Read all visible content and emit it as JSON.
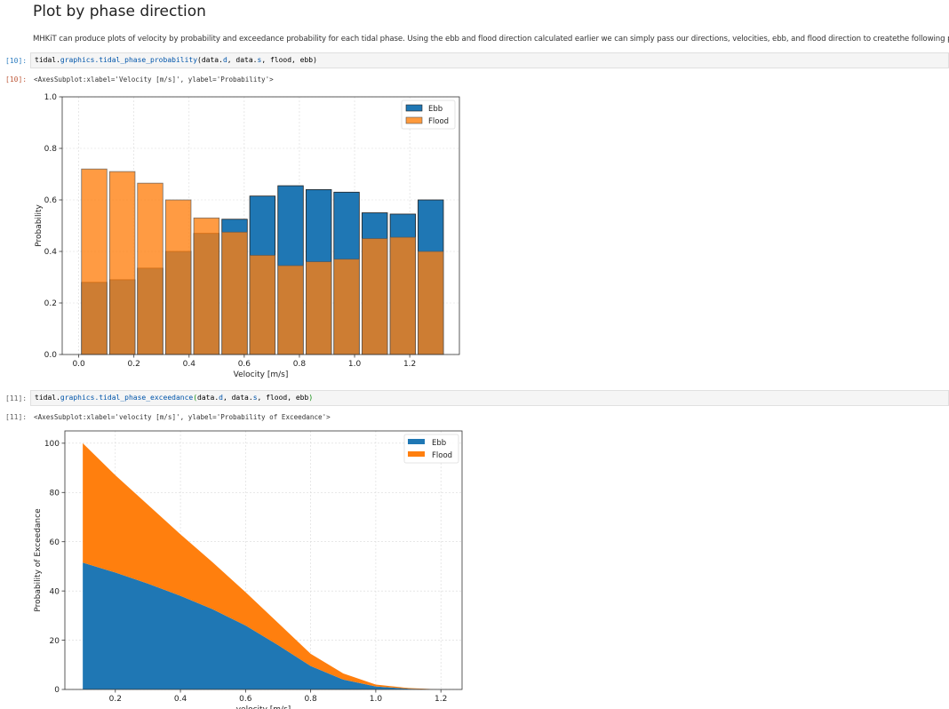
{
  "markdown": {
    "title": "Plot by phase direction",
    "text": "MHKiT can produce plots of velocity by probability and exceedance probability for each tidal phase. Using the ebb and flood direction calculated earlier we can simply pass our directions, velocities, ebb, and flood direction to createthe following plots:"
  },
  "cells": [
    {
      "in_prompt": "[10]:",
      "out_prompt": "[10]:",
      "code": {
        "obj": "tidal.",
        "attr": "graphics.tidal_phase_probability",
        "open": "(",
        "args_a": "data.",
        "a1": "d",
        "sep1": ", data.",
        "a2": "s",
        "rest": ", flood, ebb",
        "close": ")"
      },
      "output": "<AxesSubplot:xlabel='Velocity [m/s]', ylabel='Probability'>"
    },
    {
      "in_prompt": "[11]:",
      "out_prompt": "[11]:",
      "code": {
        "obj": "tidal.",
        "attr": "graphics.tidal_phase_exceedance",
        "open": "(",
        "args_a": "data.",
        "a1": "d",
        "sep1": ", data.",
        "a2": "s",
        "rest": ", flood, ebb",
        "close": ")"
      },
      "output": "<AxesSubplot:xlabel='velocity [m/s]', ylabel='Probability of Exceedance'>"
    }
  ],
  "colors": {
    "ebb": "#1f77b4",
    "flood": "#ff7f0e",
    "flood_overlay": "#ff9a3c",
    "overlap": "#cf7d32"
  },
  "chart_data": [
    {
      "type": "bar",
      "title": "",
      "xlabel": "Velocity [m/s]",
      "ylabel": "Probability",
      "xlim": [
        -0.06,
        1.38
      ],
      "ylim": [
        0,
        1.0
      ],
      "xticks": [
        "0.0",
        "0.2",
        "0.4",
        "0.6",
        "0.8",
        "1.0",
        "1.2"
      ],
      "xtick_values": [
        0.0,
        0.2,
        0.4,
        0.6,
        0.8,
        1.0,
        1.2
      ],
      "yticks": [
        "0.0",
        "0.2",
        "0.4",
        "0.6",
        "0.8",
        "1.0"
      ],
      "ytick_values": [
        0.0,
        0.2,
        0.4,
        0.6,
        0.8,
        1.0
      ],
      "grid": true,
      "legend": "top-right",
      "bin_centers": [
        0.056,
        0.158,
        0.259,
        0.361,
        0.463,
        0.565,
        0.666,
        0.768,
        0.87,
        0.971,
        1.073,
        1.175,
        1.276
      ],
      "bin_width": 0.092,
      "series": [
        {
          "name": "Ebb",
          "values": [
            0.28,
            0.29,
            0.335,
            0.4,
            0.47,
            0.525,
            0.615,
            0.655,
            0.64,
            0.63,
            0.55,
            0.545,
            0.6
          ]
        },
        {
          "name": "Flood",
          "values": [
            0.72,
            0.71,
            0.665,
            0.6,
            0.53,
            0.475,
            0.385,
            0.345,
            0.36,
            0.37,
            0.45,
            0.455,
            0.4
          ]
        }
      ]
    },
    {
      "type": "area",
      "title": "",
      "xlabel": "velocity [m/s]",
      "ylabel": "Probability of Exceedance",
      "xlim": [
        0.045,
        1.265
      ],
      "ylim": [
        0,
        105
      ],
      "xticks": [
        "0.2",
        "0.4",
        "0.6",
        "0.8",
        "1.0",
        "1.2"
      ],
      "xtick_values": [
        0.2,
        0.4,
        0.6,
        0.8,
        1.0,
        1.2
      ],
      "yticks": [
        "0",
        "20",
        "40",
        "60",
        "80",
        "100"
      ],
      "ytick_values": [
        0,
        20,
        40,
        60,
        80,
        100
      ],
      "grid": true,
      "legend": "top-right",
      "stacked": true,
      "x": [
        0.1,
        0.2,
        0.3,
        0.4,
        0.5,
        0.6,
        0.7,
        0.8,
        0.9,
        1.0,
        1.1,
        1.2
      ],
      "series": [
        {
          "name": "Ebb",
          "values": [
            51.5,
            47.5,
            43,
            38,
            32.5,
            26,
            18,
            9.5,
            4,
            1.2,
            0.3,
            0
          ]
        },
        {
          "name": "Flood",
          "values": [
            48.5,
            39.5,
            32,
            25,
            19,
            13.5,
            9,
            5,
            2.5,
            0.8,
            0.3,
            0
          ]
        }
      ]
    }
  ]
}
